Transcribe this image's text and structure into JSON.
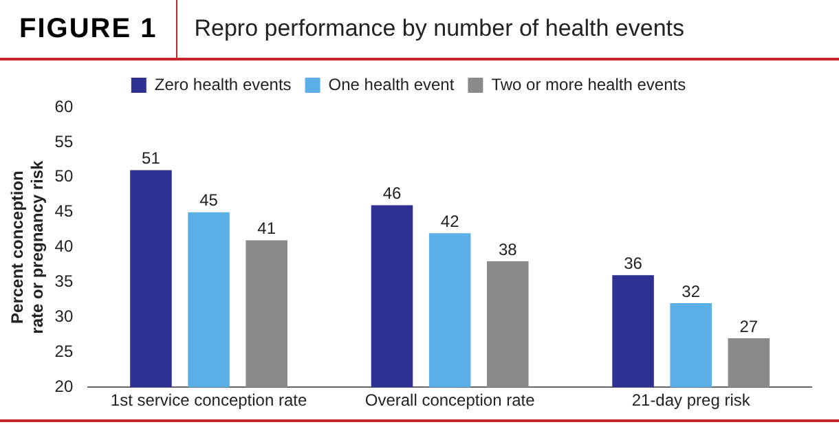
{
  "chart_data": {
    "type": "bar",
    "title": "FIGURE 1",
    "subtitle": "Repro performance by number of health events",
    "ylabel": "Percent conception rate or pregnancy risk",
    "categories": [
      "1st service conception rate",
      "Overall conception rate",
      "21-day preg risk"
    ],
    "series": [
      {
        "name": "Zero health events",
        "color": "#2e3192",
        "values": [
          51,
          46,
          36
        ]
      },
      {
        "name": "One health event",
        "color": "#5aafe6",
        "values": [
          45,
          42,
          32
        ]
      },
      {
        "name": "Two or more health events",
        "color": "#8a8a8a",
        "values": [
          41,
          38,
          27
        ]
      }
    ],
    "ylim": [
      20,
      60
    ],
    "yticks": [
      20,
      25,
      30,
      35,
      40,
      45,
      50,
      55,
      60
    ],
    "grid": false,
    "legend": "top",
    "data_labels": true
  }
}
